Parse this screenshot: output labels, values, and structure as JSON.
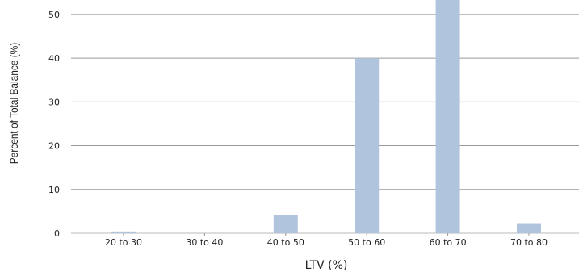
{
  "chart_data": {
    "type": "bar",
    "categories": [
      "20 to 30",
      "30 to 40",
      "40 to 50",
      "50 to 60",
      "60 to 70",
      "70 to 80"
    ],
    "values": [
      0.4,
      0.0,
      4.2,
      40.0,
      57.5,
      2.3
    ],
    "xlabel": "LTV (%)",
    "ylabel": "Percent of Total Balance (%)",
    "yticks": [
      0,
      10,
      20,
      30,
      40,
      50
    ],
    "ylim": [
      0,
      53.3
    ],
    "grid": true,
    "legend": "none",
    "colors": {
      "bar": "#b0c4de",
      "grid": "#999999",
      "text": "#222222"
    }
  }
}
